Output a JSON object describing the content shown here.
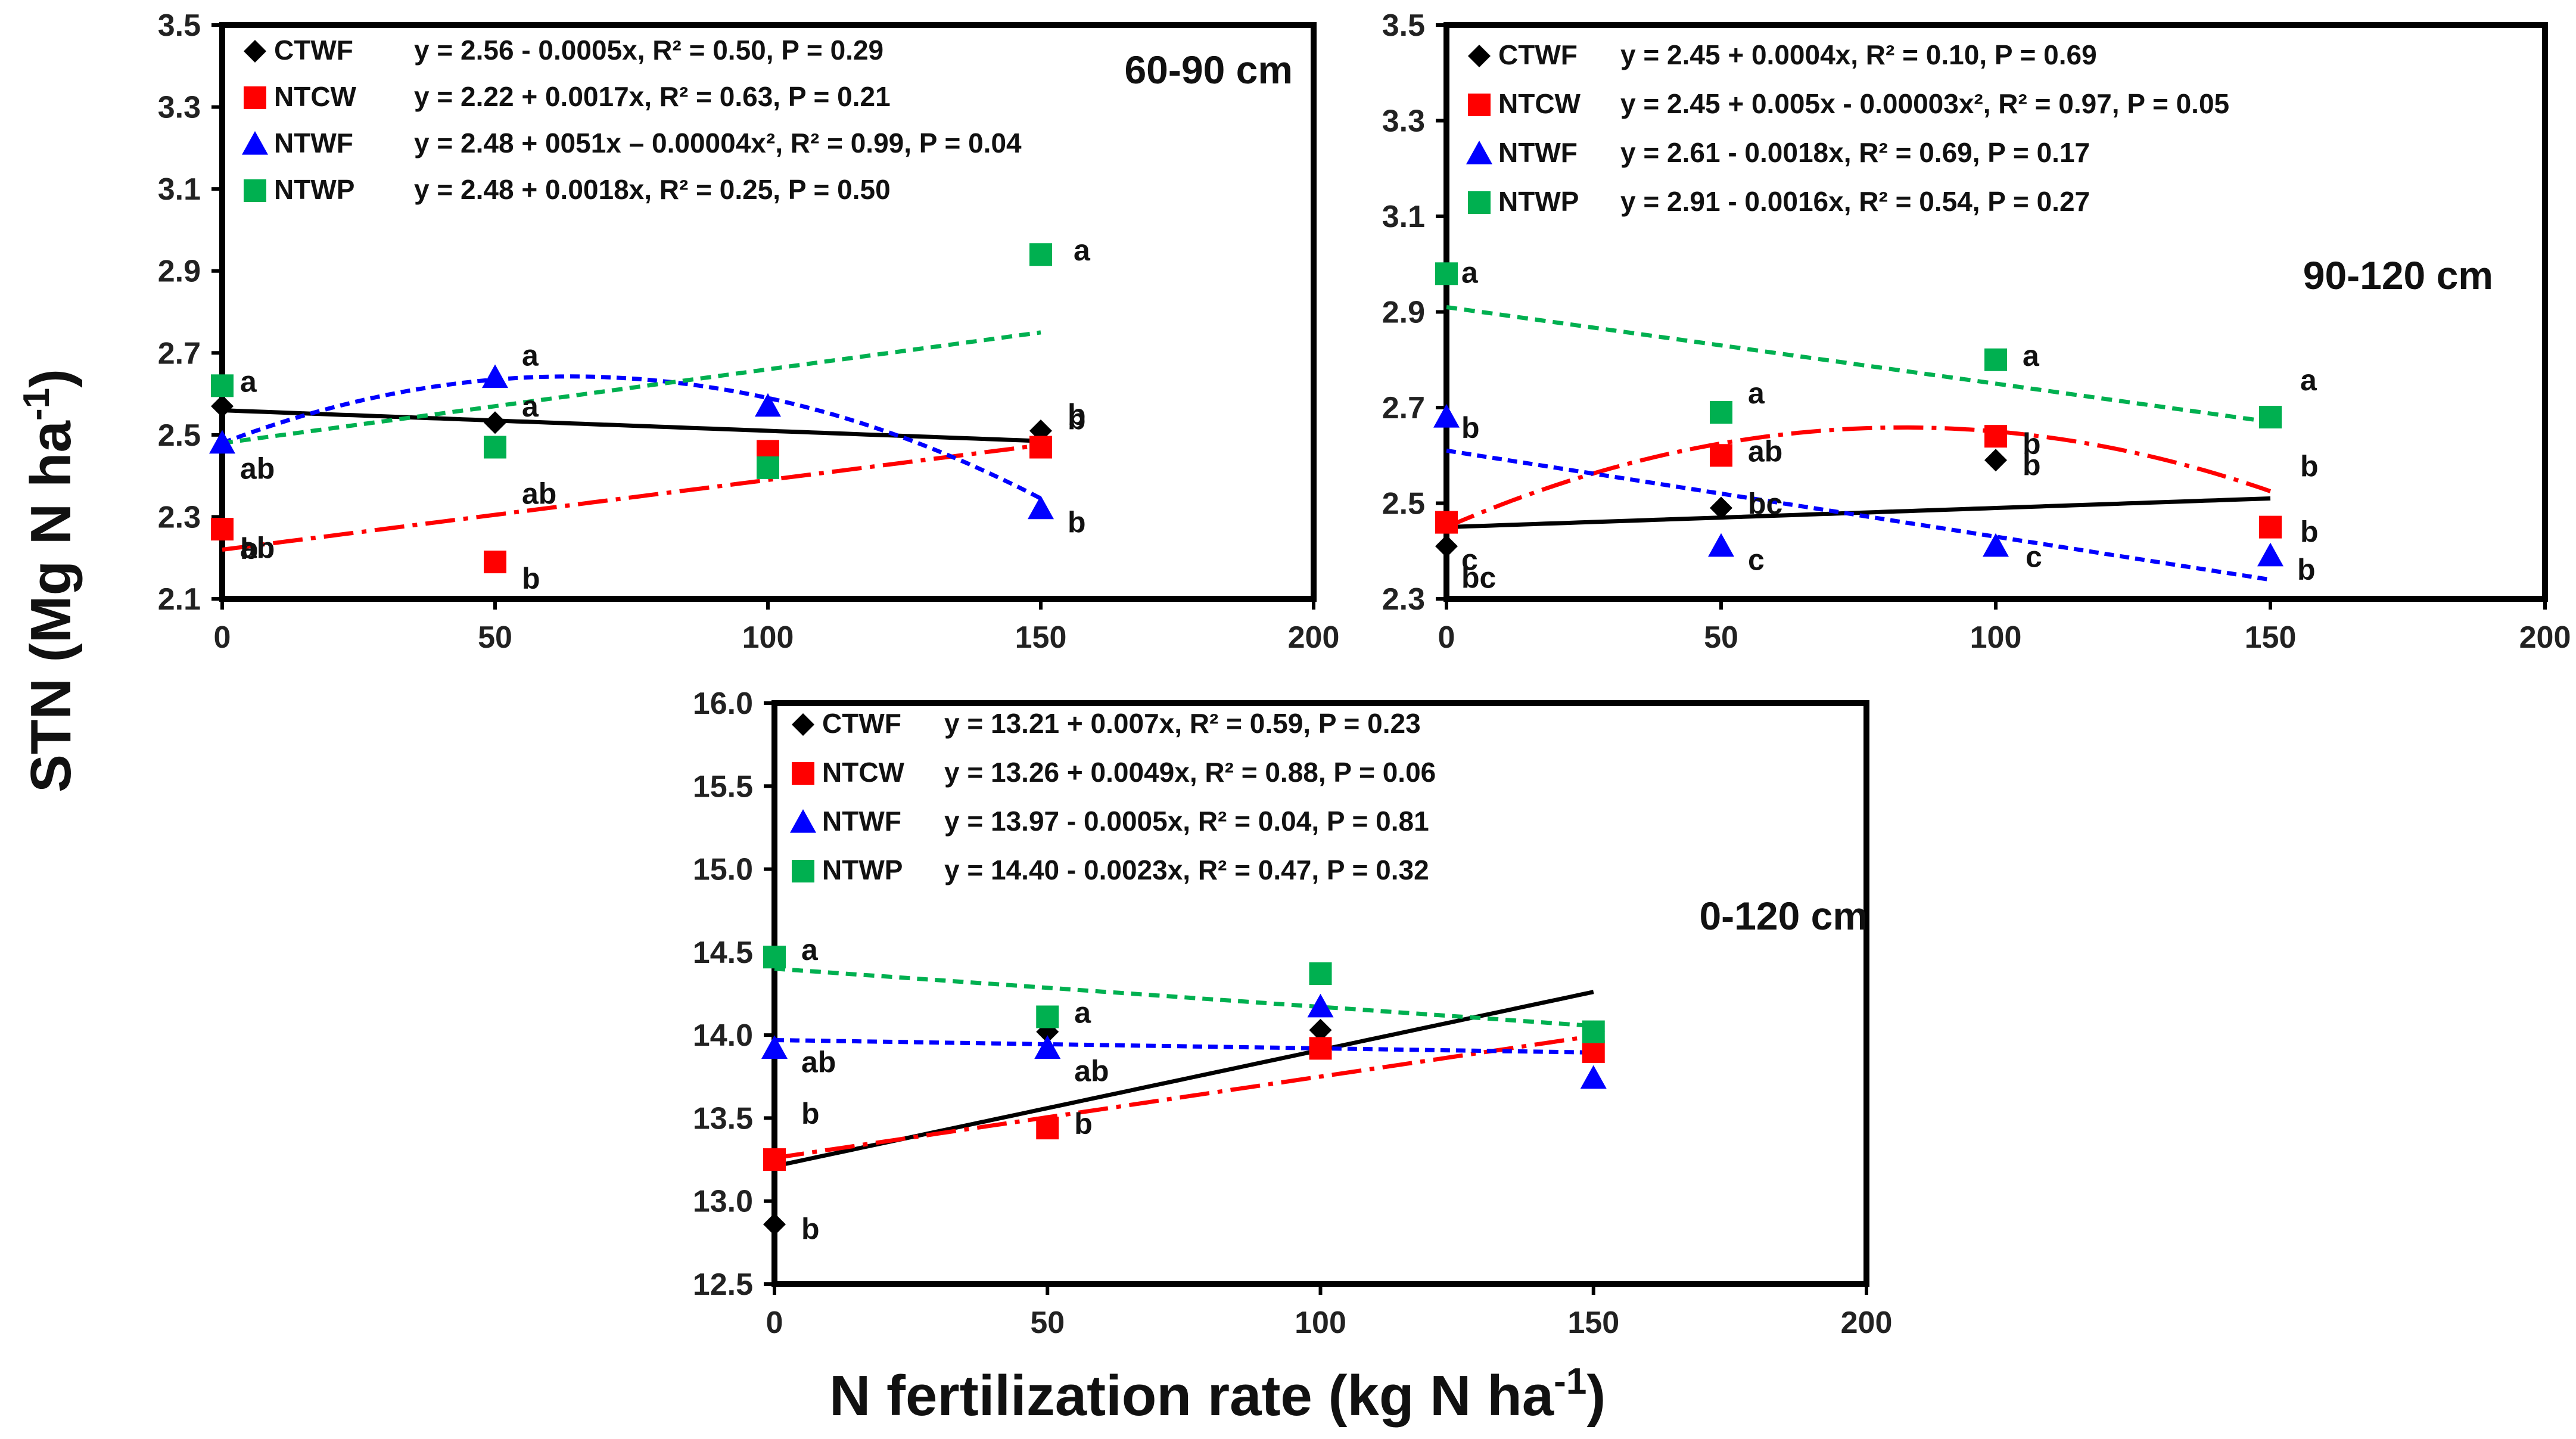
{
  "colors": {
    "CTWF": "#000000",
    "NTCW": "#ff0000",
    "NTWF": "#0000ff",
    "NTWP": "#00b050"
  },
  "axis_labels": {
    "y_main": "STN (Mg N ha",
    "y_sup": "-1",
    "y_close": ")",
    "x_main": "N fertilization rate (kg N ha",
    "x_sup": "-1",
    "x_close": ")"
  },
  "chart_data": [
    {
      "type": "scatter",
      "title": "60-90 cm",
      "xlim": [
        0,
        200
      ],
      "ylim": [
        2.1,
        3.5
      ],
      "xticks": [
        "0",
        "50",
        "100",
        "150",
        "200"
      ],
      "yticks": [
        "2.1",
        "2.3",
        "2.5",
        "2.7",
        "2.9",
        "3.1",
        "3.3",
        "3.5"
      ],
      "x": [
        0,
        50,
        100,
        150
      ],
      "series": [
        {
          "name": "CTWF",
          "marker": "diamond",
          "values": [
            2.57,
            2.53,
            2.46,
            2.51
          ],
          "letters": [
            "ab",
            "a",
            "",
            ""
          ],
          "equation": "y = 2.56 - 0.0005x, R² = 0.50, P = 0.29",
          "fit": "linear"
        },
        {
          "name": "NTCW",
          "marker": "square",
          "values": [
            2.27,
            2.19,
            2.46,
            2.47
          ],
          "letters": [
            "b",
            "b",
            "",
            "b"
          ],
          "equation": "y = 2.22 + 0.0017x, R² = 0.63, P = 0.21",
          "fit": "linear"
        },
        {
          "name": "NTWF",
          "marker": "triangle",
          "values": [
            2.48,
            2.64,
            2.57,
            2.32
          ],
          "letters": [
            "ab",
            "a",
            "",
            "b"
          ],
          "equation": "y = 2.48 + 0051x – 0.00004x², R² = 0.99, P = 0.04",
          "fit": "quadratic"
        },
        {
          "name": "NTWP",
          "marker": "square",
          "values": [
            2.62,
            2.47,
            2.42,
            2.94
          ],
          "letters": [
            "a",
            "ab",
            "",
            "a"
          ],
          "equation": "y = 2.48 + 0.0018x, R² = 0.25, P = 0.50",
          "fit": "linear"
        }
      ],
      "extra_letters": [
        "b"
      ]
    },
    {
      "type": "scatter",
      "title": "90-120 cm",
      "xlim": [
        0,
        200
      ],
      "ylim": [
        2.3,
        3.5
      ],
      "xticks": [
        "0",
        "50",
        "100",
        "150",
        "200"
      ],
      "yticks": [
        "2.3",
        "2.5",
        "2.7",
        "2.9",
        "3.1",
        "3.3",
        "3.5"
      ],
      "x": [
        0,
        50,
        100,
        150
      ],
      "series": [
        {
          "name": "CTWF",
          "marker": "diamond",
          "values": [
            2.41,
            2.49,
            2.59,
            2.45
          ],
          "letters": [
            "c",
            "bc",
            "b",
            "b"
          ],
          "equation": "y = 2.45 + 0.0004x, R² = 0.10, P = 0.69",
          "fit": "linear"
        },
        {
          "name": "NTCW",
          "marker": "square",
          "values": [
            2.46,
            2.6,
            2.64,
            2.45
          ],
          "letters": [
            "bc",
            "ab",
            "b",
            "b"
          ],
          "equation": "y = 2.45 + 0.005x - 0.00003x², R² = 0.97, P = 0.05",
          "fit": "quadratic"
        },
        {
          "name": "NTWF",
          "marker": "triangle",
          "values": [
            2.68,
            2.41,
            2.41,
            2.39
          ],
          "letters": [
            "b",
            "c",
            "c",
            "b"
          ],
          "equation": "y = 2.61 - 0.0018x, R² = 0.69, P = 0.17",
          "fit": "linear"
        },
        {
          "name": "NTWP",
          "marker": "square",
          "values": [
            2.98,
            2.69,
            2.8,
            2.68
          ],
          "letters": [
            "a",
            "a",
            "a",
            "a"
          ],
          "equation": "y = 2.91 - 0.0016x, R² = 0.54, P = 0.27",
          "fit": "linear"
        }
      ]
    },
    {
      "type": "scatter",
      "title": "0-120 cm",
      "xlim": [
        0,
        200
      ],
      "ylim": [
        12.5,
        16.0
      ],
      "xticks": [
        "0",
        "50",
        "100",
        "150",
        "200"
      ],
      "yticks": [
        "12.5",
        "13.0",
        "13.5",
        "14.0",
        "14.5",
        "15.0",
        "15.5",
        "16.0"
      ],
      "x": [
        0,
        50,
        100,
        150
      ],
      "series": [
        {
          "name": "CTWF",
          "marker": "diamond",
          "values": [
            12.86,
            14.02,
            14.03,
            14.02
          ],
          "letters": [
            "b",
            "",
            "",
            ""
          ],
          "equation": "y = 13.21 + 0.007x, R² = 0.59, P = 0.23",
          "fit": "linear"
        },
        {
          "name": "NTCW",
          "marker": "square",
          "values": [
            13.25,
            13.44,
            13.92,
            13.9
          ],
          "letters": [
            "b",
            "b",
            "",
            ""
          ],
          "equation": "y = 13.26 + 0.0049x, R² = 0.88, P = 0.06",
          "fit": "linear"
        },
        {
          "name": "NTWF",
          "marker": "triangle",
          "values": [
            13.92,
            13.92,
            14.17,
            13.74
          ],
          "letters": [
            "ab",
            "ab",
            "",
            ""
          ],
          "equation": "y = 13.97 - 0.0005x, R² = 0.04, P = 0.81",
          "fit": "linear"
        },
        {
          "name": "NTWP",
          "marker": "square",
          "values": [
            14.47,
            14.11,
            14.37,
            14.02
          ],
          "letters": [
            "a",
            "a",
            "",
            ""
          ],
          "equation": "y = 14.40 - 0.0023x, R² = 0.47, P = 0.32",
          "fit": "linear"
        }
      ]
    }
  ]
}
